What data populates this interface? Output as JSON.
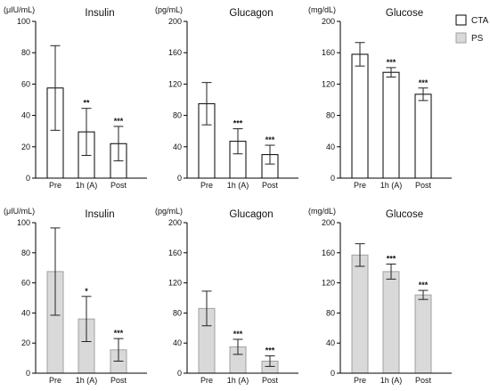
{
  "legend": {
    "items": [
      {
        "label": "CTA",
        "fill": "#ffffff",
        "stroke": "#000000"
      },
      {
        "label": "PS",
        "fill": "#d9d9d9",
        "stroke": "#9e9e9e"
      }
    ]
  },
  "colors": {
    "cta_fill": "#ffffff",
    "cta_stroke": "#000000",
    "ps_fill": "#d9d9d9",
    "ps_stroke": "#a0a0a0",
    "axis": "#000000",
    "text": "#111111"
  },
  "chart_data": [
    {
      "type": "bar",
      "title": "Insulin",
      "unit": "(μIU/mL)",
      "group": "CTA",
      "categories": [
        "Pre",
        "1h (A)",
        "Post"
      ],
      "values": [
        57.5,
        29.5,
        22
      ],
      "errors": [
        27,
        15,
        11
      ],
      "significance": [
        "",
        "**",
        "***"
      ],
      "ylim": [
        0,
        100
      ],
      "yticks": [
        0,
        20,
        40,
        60,
        80,
        100
      ],
      "ytick_labels": [
        "0",
        "20",
        "40",
        "60",
        "80",
        "100"
      ]
    },
    {
      "type": "bar",
      "title": "Glucagon",
      "unit": "(pg/mL)",
      "group": "CTA",
      "categories": [
        "Pre",
        "1h (A)",
        "Post"
      ],
      "values": [
        95,
        47,
        30
      ],
      "errors": [
        27,
        16,
        12
      ],
      "significance": [
        "",
        "***",
        "***"
      ],
      "ylim": [
        0,
        200
      ],
      "yticks": [
        0,
        40,
        80,
        120,
        160,
        200
      ],
      "ytick_labels": [
        "0",
        "40",
        "80",
        "120",
        "160",
        "200"
      ]
    },
    {
      "type": "bar",
      "title": "Glucose",
      "unit": "(mg/dL)",
      "group": "CTA",
      "categories": [
        "Pre",
        "1h (A)",
        "Post"
      ],
      "values": [
        158,
        135,
        107
      ],
      "errors": [
        15,
        6,
        8
      ],
      "significance": [
        "",
        "***",
        "***"
      ],
      "ylim": [
        0,
        200
      ],
      "yticks": [
        0,
        40,
        80,
        120,
        160,
        200
      ],
      "ytick_labels": [
        "0",
        "40",
        "80",
        "120",
        "160",
        "200"
      ]
    },
    {
      "type": "bar",
      "title": "Insulin",
      "unit": "(μIU/mL)",
      "group": "PS",
      "categories": [
        "Pre",
        "1h (A)",
        "Post"
      ],
      "values": [
        67.5,
        36,
        15.5
      ],
      "errors": [
        29,
        15,
        7.5
      ],
      "significance": [
        "",
        "*",
        "***"
      ],
      "ylim": [
        0,
        100
      ],
      "yticks": [
        0,
        20,
        40,
        60,
        80,
        100
      ],
      "ytick_labels": [
        "0",
        "20",
        "40",
        "60",
        "80",
        "100"
      ]
    },
    {
      "type": "bar",
      "title": "Glucagon",
      "unit": "(pg/mL)",
      "group": "PS",
      "categories": [
        "Pre",
        "1h (A)",
        "Post"
      ],
      "values": [
        86,
        35,
        16
      ],
      "errors": [
        23,
        10,
        7
      ],
      "significance": [
        "",
        "***",
        "***"
      ],
      "ylim": [
        0,
        200
      ],
      "yticks": [
        0,
        40,
        80,
        120,
        160,
        200
      ],
      "ytick_labels": [
        "0",
        "40",
        "80",
        "120",
        "160",
        "200"
      ]
    },
    {
      "type": "bar",
      "title": "Glucose",
      "unit": "(mg/dL)",
      "group": "PS",
      "categories": [
        "Pre",
        "1h (A)",
        "Post"
      ],
      "values": [
        157,
        135,
        104
      ],
      "errors": [
        15,
        10,
        6
      ],
      "significance": [
        "",
        "***",
        "***"
      ],
      "ylim": [
        0,
        200
      ],
      "yticks": [
        0,
        40,
        80,
        120,
        160,
        200
      ],
      "ytick_labels": [
        "0",
        "40",
        "80",
        "120",
        "160",
        "200"
      ]
    }
  ]
}
